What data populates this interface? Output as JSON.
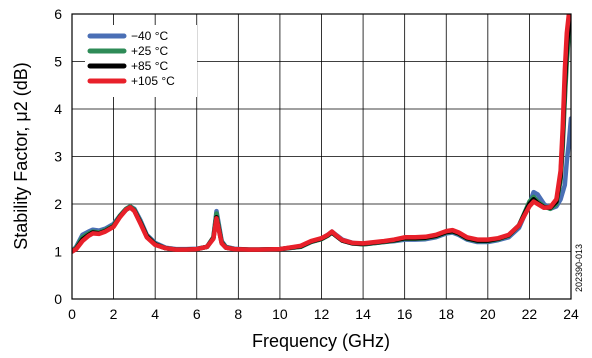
{
  "figure_id": "202390-013",
  "chart_data": {
    "type": "line",
    "title": "",
    "xlabel": "Frequency (GHz)",
    "ylabel": "Stability Factor, μ2 (dB)",
    "xlim": [
      0,
      24
    ],
    "ylim": [
      0,
      6
    ],
    "xticks": [
      "0",
      "2",
      "4",
      "6",
      "8",
      "10",
      "12",
      "14",
      "16",
      "18",
      "20",
      "22",
      "24"
    ],
    "yticks": [
      "0",
      "1",
      "2",
      "3",
      "4",
      "5",
      "6"
    ],
    "grid": true,
    "legend_position": "top-left",
    "series": [
      {
        "name": "−40 °C",
        "color": "#4a6fb5",
        "x": [
          0,
          0.2,
          0.5,
          0.8,
          1,
          1.3,
          1.6,
          2,
          2.3,
          2.6,
          2.8,
          3.0,
          3.3,
          3.6,
          4,
          4.5,
          5,
          5.5,
          6,
          6.5,
          6.8,
          6.95,
          7.05,
          7.2,
          7.4,
          7.8,
          8.5,
          9,
          10,
          11,
          11.5,
          12,
          12.3,
          12.5,
          12.7,
          13,
          13.5,
          14,
          15,
          15.5,
          16,
          16.5,
          17,
          17.5,
          18,
          18.3,
          18.6,
          19,
          19.5,
          20,
          20.5,
          21,
          21.5,
          22,
          22.2,
          22.4,
          22.7,
          23,
          23.3,
          23.5,
          23.7,
          23.8,
          23.9,
          24
        ],
        "values": [
          1.0,
          1.1,
          1.35,
          1.42,
          1.46,
          1.44,
          1.48,
          1.58,
          1.75,
          1.9,
          1.95,
          1.9,
          1.65,
          1.35,
          1.18,
          1.08,
          1.05,
          1.05,
          1.06,
          1.1,
          1.3,
          1.85,
          1.6,
          1.22,
          1.1,
          1.06,
          1.04,
          1.04,
          1.05,
          1.1,
          1.2,
          1.27,
          1.35,
          1.42,
          1.35,
          1.25,
          1.18,
          1.15,
          1.2,
          1.22,
          1.25,
          1.25,
          1.26,
          1.3,
          1.38,
          1.4,
          1.35,
          1.25,
          1.2,
          1.2,
          1.24,
          1.3,
          1.5,
          2.0,
          2.25,
          2.2,
          2.0,
          1.9,
          1.95,
          2.1,
          2.4,
          2.9,
          3.3,
          3.8
        ]
      },
      {
        "name": "+25 °C",
        "color": "#2e8b57",
        "x": [
          0,
          0.2,
          0.5,
          0.8,
          1,
          1.3,
          1.6,
          2,
          2.3,
          2.6,
          2.8,
          3.0,
          3.3,
          3.6,
          4,
          4.5,
          5,
          5.5,
          6,
          6.5,
          6.8,
          6.95,
          7.05,
          7.2,
          7.4,
          7.8,
          8.5,
          9,
          10,
          11,
          11.5,
          12,
          12.3,
          12.5,
          12.7,
          13,
          13.5,
          14,
          15,
          15.5,
          16,
          16.5,
          17,
          17.5,
          18,
          18.3,
          18.6,
          19,
          19.5,
          20,
          20.5,
          21,
          21.5,
          22,
          22.2,
          22.4,
          22.7,
          23,
          23.3,
          23.5,
          23.6,
          23.7,
          23.8,
          23.9,
          24
        ],
        "values": [
          1.0,
          1.08,
          1.3,
          1.38,
          1.42,
          1.4,
          1.45,
          1.55,
          1.75,
          1.9,
          1.95,
          1.88,
          1.62,
          1.33,
          1.16,
          1.07,
          1.04,
          1.04,
          1.05,
          1.1,
          1.3,
          1.8,
          1.55,
          1.2,
          1.09,
          1.05,
          1.04,
          1.04,
          1.05,
          1.1,
          1.2,
          1.26,
          1.33,
          1.4,
          1.33,
          1.23,
          1.17,
          1.15,
          1.2,
          1.23,
          1.27,
          1.27,
          1.28,
          1.32,
          1.4,
          1.42,
          1.37,
          1.27,
          1.22,
          1.22,
          1.26,
          1.33,
          1.55,
          2.05,
          2.15,
          2.05,
          1.95,
          1.9,
          2.0,
          2.5,
          3.2,
          4.2,
          5.0,
          5.6,
          6.0
        ]
      },
      {
        "name": "+85 °C",
        "color": "#000000",
        "x": [
          0,
          0.2,
          0.5,
          0.8,
          1,
          1.3,
          1.6,
          2,
          2.3,
          2.6,
          2.8,
          3.0,
          3.3,
          3.6,
          4,
          4.5,
          5,
          5.5,
          6,
          6.5,
          6.8,
          6.95,
          7.05,
          7.2,
          7.4,
          7.8,
          8.5,
          9,
          10,
          11,
          11.5,
          12,
          12.3,
          12.5,
          12.7,
          13,
          13.5,
          14,
          15,
          15.5,
          16,
          16.5,
          17,
          17.5,
          18,
          18.3,
          18.6,
          19,
          19.5,
          20,
          20.5,
          21,
          21.5,
          22,
          22.2,
          22.4,
          22.7,
          23,
          23.3,
          23.5,
          23.6,
          23.7,
          23.8,
          23.9,
          24
        ],
        "values": [
          1.0,
          1.06,
          1.25,
          1.35,
          1.4,
          1.38,
          1.43,
          1.53,
          1.73,
          1.88,
          1.93,
          1.86,
          1.6,
          1.32,
          1.15,
          1.07,
          1.04,
          1.04,
          1.05,
          1.1,
          1.28,
          1.72,
          1.5,
          1.18,
          1.08,
          1.05,
          1.04,
          1.04,
          1.05,
          1.11,
          1.21,
          1.27,
          1.34,
          1.4,
          1.33,
          1.23,
          1.17,
          1.16,
          1.21,
          1.24,
          1.28,
          1.28,
          1.29,
          1.33,
          1.41,
          1.43,
          1.38,
          1.28,
          1.23,
          1.23,
          1.27,
          1.34,
          1.55,
          2.0,
          2.1,
          2.02,
          1.93,
          1.92,
          2.05,
          2.6,
          3.4,
          4.5,
          5.3,
          5.8,
          6.0
        ]
      },
      {
        "name": "+105 °C",
        "color": "#e8202a",
        "x": [
          0,
          0.2,
          0.5,
          0.8,
          1,
          1.3,
          1.6,
          2,
          2.3,
          2.6,
          2.8,
          3.0,
          3.3,
          3.6,
          4,
          4.5,
          5,
          5.5,
          6,
          6.5,
          6.8,
          6.95,
          7.05,
          7.2,
          7.4,
          7.8,
          8.5,
          9,
          10,
          11,
          11.5,
          12,
          12.3,
          12.5,
          12.7,
          13,
          13.5,
          14,
          15,
          15.5,
          16,
          16.5,
          17,
          17.5,
          18,
          18.3,
          18.6,
          19,
          19.5,
          20,
          20.5,
          21,
          21.5,
          22,
          22.2,
          22.4,
          22.7,
          23,
          23.3,
          23.5,
          23.6,
          23.7,
          23.8,
          23.9,
          24
        ],
        "values": [
          1.0,
          1.05,
          1.22,
          1.33,
          1.38,
          1.37,
          1.42,
          1.52,
          1.72,
          1.88,
          1.93,
          1.85,
          1.58,
          1.3,
          1.14,
          1.07,
          1.04,
          1.04,
          1.05,
          1.1,
          1.27,
          1.7,
          1.48,
          1.17,
          1.08,
          1.05,
          1.04,
          1.04,
          1.05,
          1.12,
          1.22,
          1.28,
          1.35,
          1.42,
          1.34,
          1.24,
          1.18,
          1.17,
          1.22,
          1.25,
          1.3,
          1.3,
          1.31,
          1.35,
          1.43,
          1.45,
          1.4,
          1.3,
          1.25,
          1.25,
          1.28,
          1.35,
          1.55,
          1.95,
          2.05,
          2.0,
          1.92,
          1.93,
          2.1,
          2.7,
          3.6,
          4.8,
          5.6,
          6.0,
          6.0
        ]
      }
    ]
  }
}
